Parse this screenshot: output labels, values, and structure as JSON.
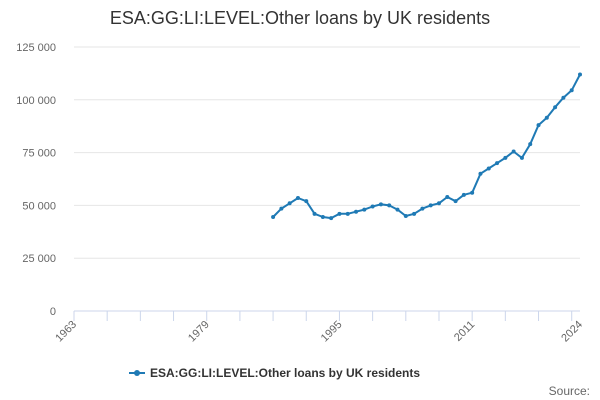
{
  "chart_data": {
    "type": "line",
    "title": "ESA:GG:LI:LEVEL:Other loans by UK residents",
    "xlabel": "",
    "ylabel": "",
    "xlim": [
      1963,
      2024
    ],
    "ylim": [
      0,
      125000
    ],
    "x_ticks": [
      1963,
      1979,
      1995,
      2011,
      2024
    ],
    "y_ticks": [
      0,
      25000,
      50000,
      75000,
      100000,
      125000
    ],
    "y_tick_labels": [
      "0",
      "25 000",
      "50 000",
      "75 000",
      "100 000",
      "125 000"
    ],
    "grid": "horizontal",
    "legend_position": "bottom",
    "source_label": "Source:",
    "colors": {
      "series": "#1f7ab5",
      "grid": "#e6e6e6",
      "axis": "#ccd6eb"
    },
    "series": [
      {
        "name": "ESA:GG:LI:LEVEL:Other loans by UK residents",
        "x": [
          1987,
          1988,
          1989,
          1990,
          1991,
          1992,
          1993,
          1994,
          1995,
          1996,
          1997,
          1998,
          1999,
          2000,
          2001,
          2002,
          2003,
          2004,
          2005,
          2006,
          2007,
          2008,
          2009,
          2010,
          2011,
          2012,
          2013,
          2014,
          2015,
          2016,
          2017,
          2018,
          2019,
          2020,
          2021,
          2022,
          2023,
          2024
        ],
        "values": [
          44500,
          48500,
          51000,
          53500,
          52000,
          46000,
          44500,
          44000,
          46000,
          46000,
          47000,
          48000,
          49500,
          50500,
          50000,
          48000,
          45000,
          46000,
          48500,
          50000,
          51000,
          54000,
          52000,
          55000,
          56000,
          65000,
          67500,
          70000,
          72500,
          75500,
          72500,
          79000,
          88000,
          91500,
          96500,
          101000,
          104500,
          112000
        ]
      }
    ]
  }
}
